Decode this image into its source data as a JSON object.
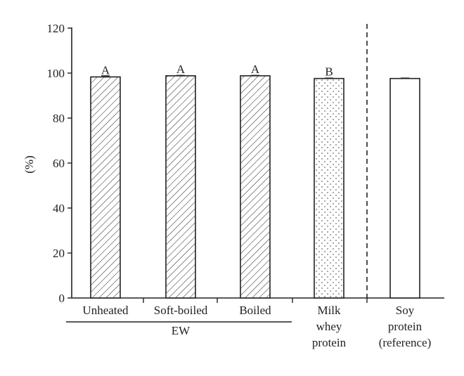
{
  "chart_data": {
    "type": "bar",
    "title": "",
    "xlabel": "",
    "ylabel": "(%)",
    "ylim": [
      0,
      120
    ],
    "yticks": [
      0,
      20,
      40,
      60,
      80,
      100,
      120
    ],
    "grid": false,
    "categories": [
      {
        "lines": [
          "Unheated"
        ],
        "value": 98.3,
        "error": 0.5,
        "significance": "A",
        "pattern": "hatch"
      },
      {
        "lines": [
          "Soft-boiled"
        ],
        "value": 98.8,
        "error": 0.2,
        "significance": "A",
        "pattern": "hatch"
      },
      {
        "lines": [
          "Boiled"
        ],
        "value": 98.8,
        "error": 0.2,
        "significance": "A",
        "pattern": "hatch"
      },
      {
        "lines": [
          "Milk",
          "whey",
          "protein"
        ],
        "value": 97.6,
        "error": 0.2,
        "significance": "B",
        "pattern": "dots"
      },
      {
        "lines": [
          "Soy",
          "protein",
          "(reference)"
        ],
        "value": 97.6,
        "error": 0.2,
        "significance": "",
        "pattern": "none"
      }
    ],
    "group_label": {
      "text": "EW",
      "from_index": 0,
      "to_index": 2
    },
    "reference_separator_after_index": 3
  }
}
